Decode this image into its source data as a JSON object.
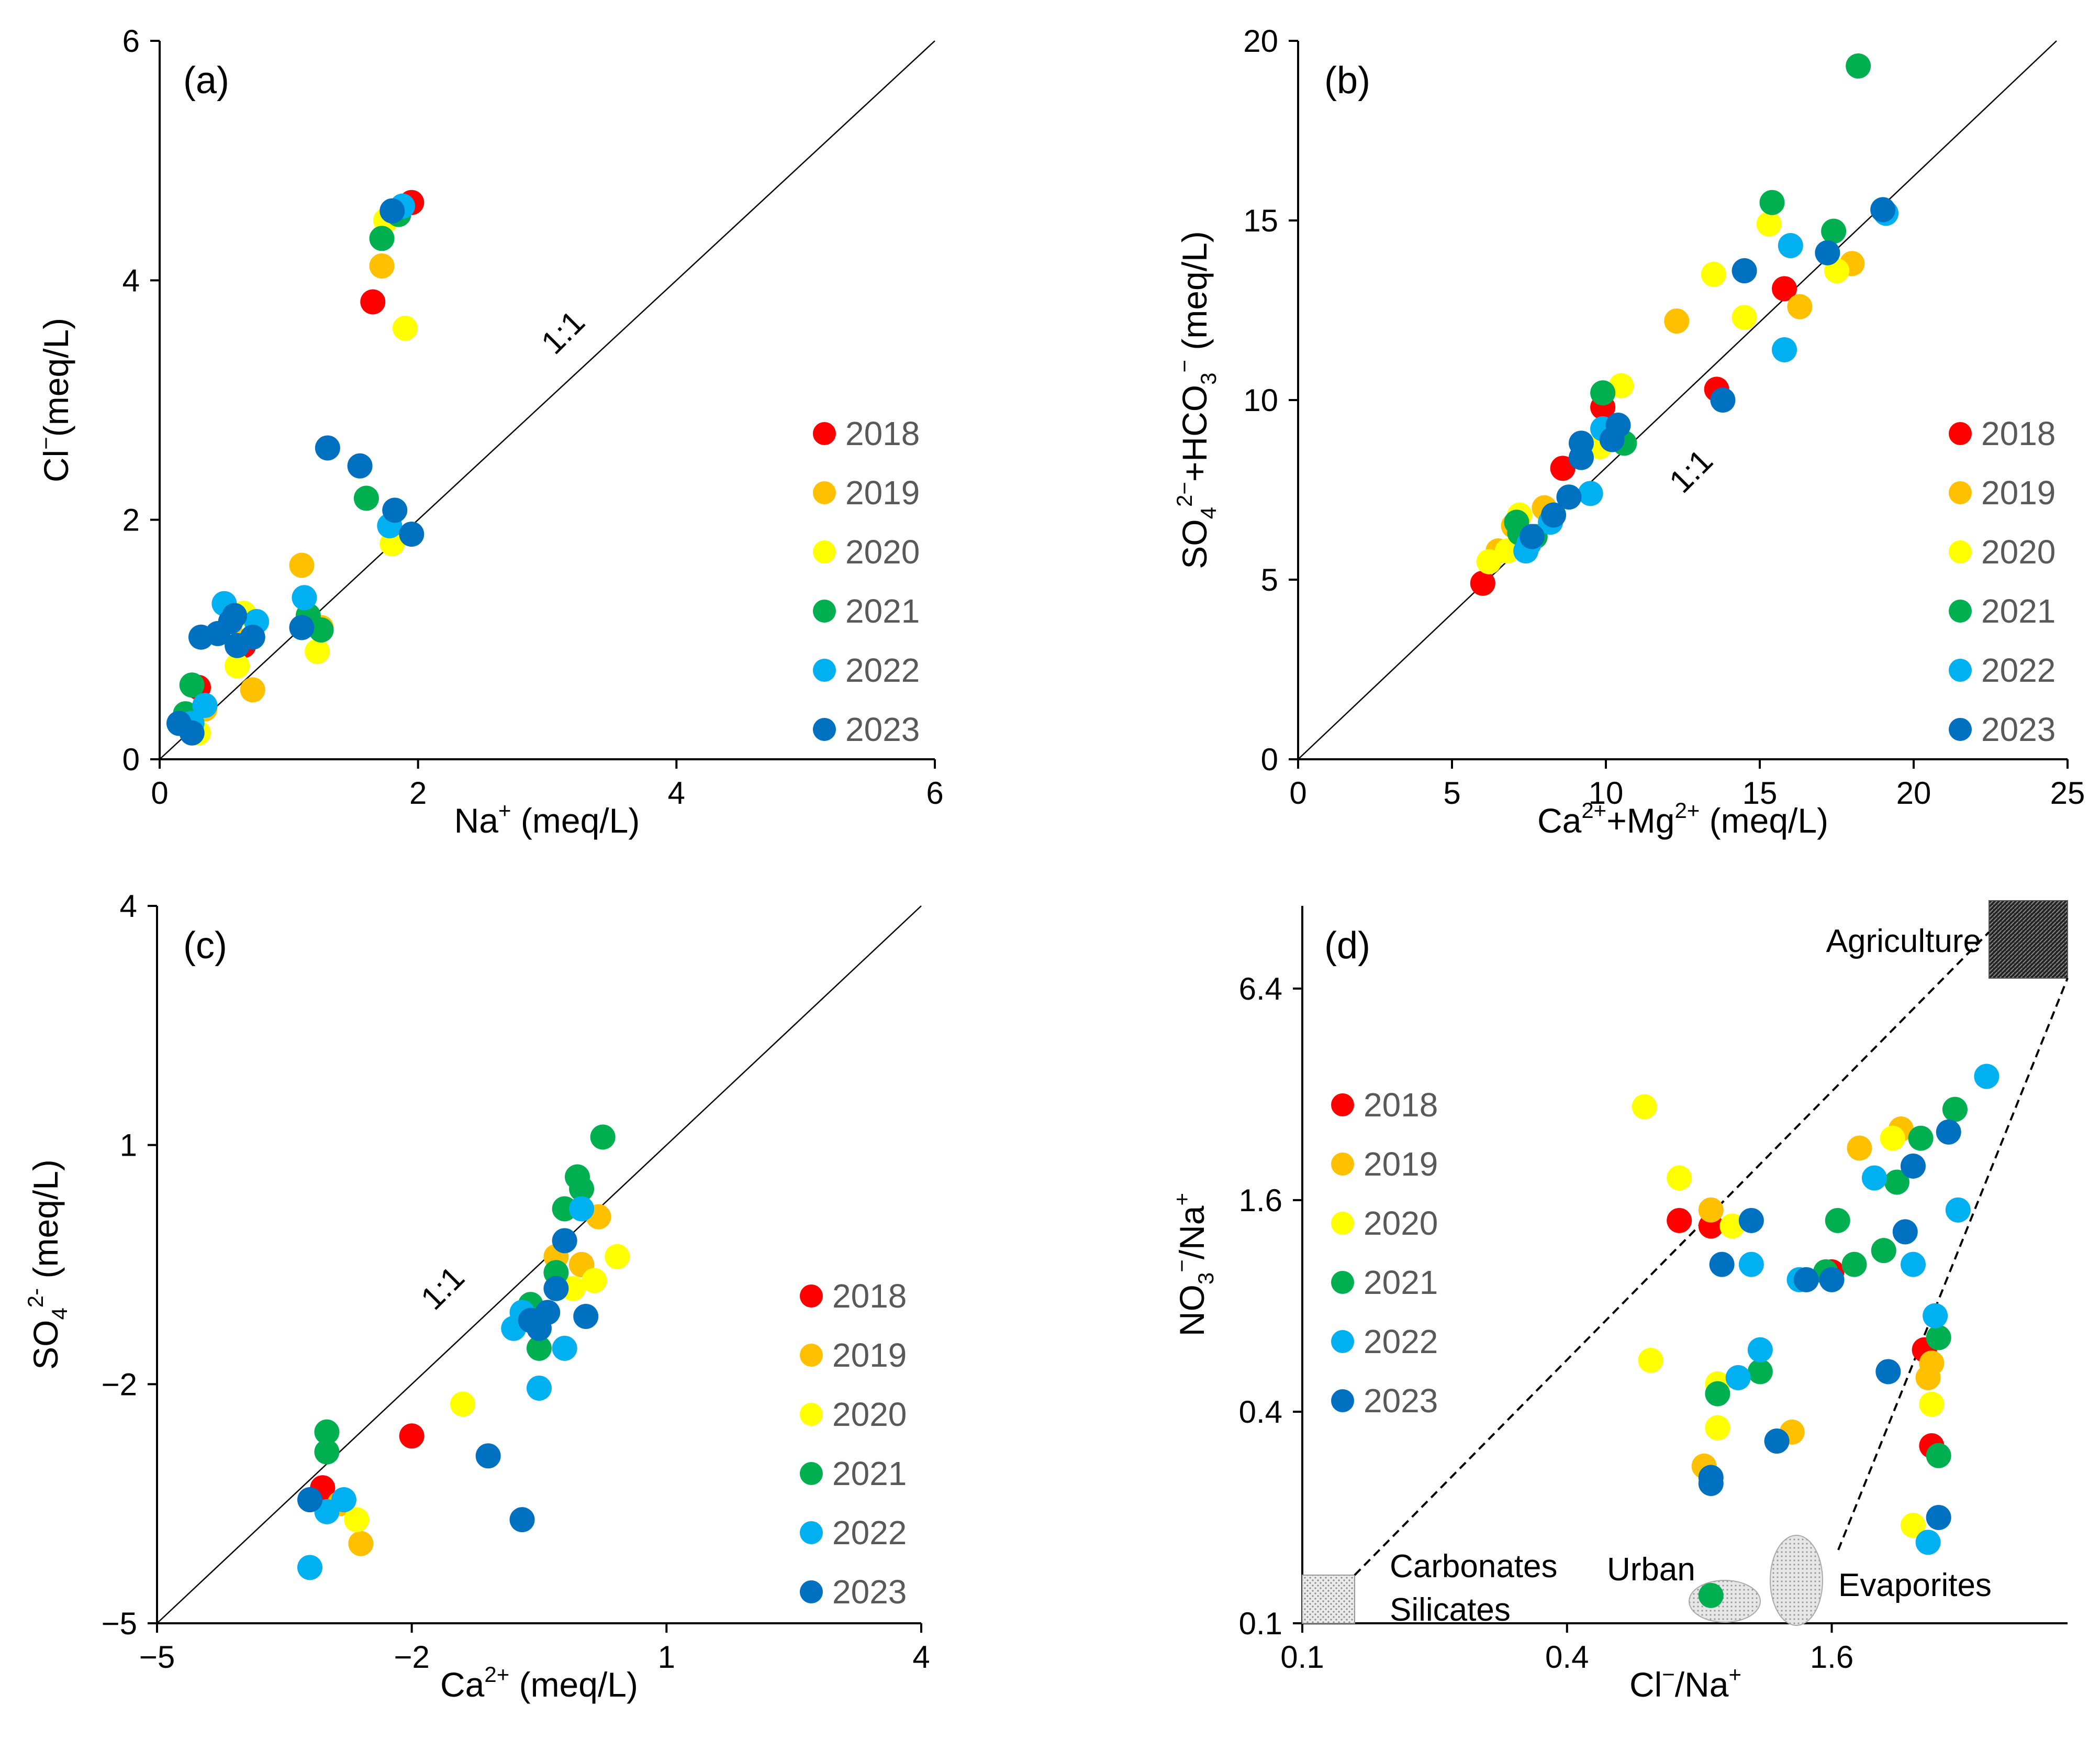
{
  "figure": {
    "colors": {
      "2018": "#ff0000",
      "2019": "#ffc000",
      "2020": "#ffff00",
      "2021": "#00b050",
      "2022": "#00b0f0",
      "2023": "#0070c0"
    },
    "ratio_label": "1:1"
  },
  "chart_data": [
    {
      "id": "a",
      "type": "scatter",
      "panel_label": "(a)",
      "xlabel": "Na⁺ (meq/L)",
      "ylabel": "Cl⁻(meq/L)",
      "xlim": [
        0,
        6
      ],
      "ylim": [
        0,
        6
      ],
      "xticks": [
        "0",
        "2",
        "4",
        "6"
      ],
      "yticks": [
        "0",
        "2",
        "4",
        "6"
      ],
      "reference_line": "1:1",
      "series": [
        {
          "name": "2018",
          "color": "#ff0000",
          "points": [
            [
              1.95,
              4.65
            ],
            [
              1.65,
              3.82
            ],
            [
              0.65,
              0.95
            ],
            [
              0.3,
              0.6
            ]
          ]
        },
        {
          "name": "2019",
          "color": "#ffc000",
          "points": [
            [
              1.72,
              4.12
            ],
            [
              1.1,
              1.62
            ],
            [
              0.72,
              0.58
            ],
            [
              0.55,
              1.05
            ],
            [
              0.35,
              0.42
            ],
            [
              1.25,
              1.1
            ]
          ]
        },
        {
          "name": "2020",
          "color": "#ffff00",
          "points": [
            [
              1.9,
              3.6
            ],
            [
              1.8,
              1.8
            ],
            [
              1.22,
              0.9
            ],
            [
              0.6,
              0.78
            ],
            [
              0.65,
              1.22
            ],
            [
              0.3,
              0.22
            ],
            [
              1.75,
              4.5
            ]
          ]
        },
        {
          "name": "2021",
          "color": "#00b050",
          "points": [
            [
              1.72,
              4.35
            ],
            [
              1.6,
              2.18
            ],
            [
              1.25,
              1.08
            ],
            [
              0.25,
              0.62
            ],
            [
              0.2,
              0.38
            ],
            [
              1.15,
              1.2
            ],
            [
              1.85,
              4.55
            ]
          ]
        },
        {
          "name": "2022",
          "color": "#00b0f0",
          "points": [
            [
              1.88,
              4.62
            ],
            [
              1.78,
              1.95
            ],
            [
              1.12,
              1.35
            ],
            [
              0.5,
              1.3
            ],
            [
              0.75,
              1.15
            ],
            [
              0.35,
              0.45
            ],
            [
              0.25,
              0.3
            ]
          ]
        },
        {
          "name": "2023",
          "color": "#0070c0",
          "points": [
            [
              1.8,
              4.58
            ],
            [
              1.3,
              2.6
            ],
            [
              1.55,
              2.45
            ],
            [
              1.82,
              2.08
            ],
            [
              1.95,
              1.88
            ],
            [
              1.1,
              1.1
            ],
            [
              0.45,
              1.05
            ],
            [
              0.55,
              1.15
            ],
            [
              0.6,
              0.95
            ],
            [
              0.72,
              1.02
            ],
            [
              0.32,
              1.02
            ],
            [
              0.15,
              0.3
            ],
            [
              0.25,
              0.22
            ],
            [
              0.58,
              1.2
            ]
          ]
        }
      ]
    },
    {
      "id": "b",
      "type": "scatter",
      "panel_label": "(b)",
      "xlabel": "Ca²⁺+Mg²⁺ (meq/L)",
      "ylabel": "SO₄²⁻+HCO₃⁻ (meq/L)",
      "xlim": [
        0,
        25
      ],
      "ylim": [
        0,
        20
      ],
      "xticks": [
        "0",
        "5",
        "10",
        "15",
        "20",
        "25"
      ],
      "yticks": [
        "0",
        "5",
        "10",
        "15",
        "20"
      ],
      "reference_line": "1:1",
      "series": [
        {
          "name": "2018",
          "color": "#ff0000",
          "points": [
            [
              6.0,
              4.9
            ],
            [
              8.6,
              8.1
            ],
            [
              9.9,
              9.8
            ],
            [
              13.6,
              10.3
            ],
            [
              15.8,
              13.1
            ]
          ]
        },
        {
          "name": "2019",
          "color": "#ffc000",
          "points": [
            [
              12.3,
              12.2
            ],
            [
              16.3,
              12.6
            ],
            [
              18.0,
              13.8
            ],
            [
              7.0,
              6.5
            ],
            [
              8.0,
              7.0
            ],
            [
              6.5,
              5.8
            ]
          ]
        },
        {
          "name": "2020",
          "color": "#ffff00",
          "points": [
            [
              15.3,
              14.9
            ],
            [
              14.5,
              12.3
            ],
            [
              13.5,
              13.5
            ],
            [
              17.5,
              13.6
            ],
            [
              10.5,
              10.4
            ],
            [
              6.2,
              5.5
            ],
            [
              6.8,
              5.8
            ],
            [
              9.8,
              8.7
            ],
            [
              7.2,
              6.8
            ]
          ]
        },
        {
          "name": "2021",
          "color": "#00b050",
          "points": [
            [
              18.2,
              19.3
            ],
            [
              15.4,
              15.5
            ],
            [
              17.4,
              14.7
            ],
            [
              9.9,
              10.2
            ],
            [
              10.6,
              8.8
            ],
            [
              7.1,
              6.6
            ],
            [
              7.7,
              6.2
            ],
            [
              7.2,
              6.3
            ]
          ]
        },
        {
          "name": "2022",
          "color": "#00b0f0",
          "points": [
            [
              16.0,
              14.3
            ],
            [
              15.8,
              11.4
            ],
            [
              19.1,
              15.2
            ],
            [
              9.5,
              7.4
            ],
            [
              9.9,
              9.2
            ],
            [
              8.2,
              6.6
            ],
            [
              7.5,
              6.0
            ],
            [
              7.4,
              5.8
            ]
          ]
        },
        {
          "name": "2023",
          "color": "#0070c0",
          "points": [
            [
              19.0,
              15.3
            ],
            [
              17.2,
              14.1
            ],
            [
              14.5,
              13.6
            ],
            [
              13.8,
              10.0
            ],
            [
              10.4,
              9.3
            ],
            [
              10.2,
              8.9
            ],
            [
              9.2,
              8.8
            ],
            [
              9.2,
              8.4
            ],
            [
              8.8,
              7.3
            ],
            [
              7.6,
              6.2
            ],
            [
              8.3,
              6.8
            ]
          ]
        }
      ]
    },
    {
      "id": "c",
      "type": "scatter",
      "panel_label": "(c)",
      "xlabel": "Ca²⁺ (meq/L)",
      "ylabel": "SO₄²⁻ (meq/L)",
      "xlim": [
        -5,
        4
      ],
      "ylim": [
        -5,
        4
      ],
      "xticks": [
        "−5",
        "−2",
        "1",
        "4"
      ],
      "yticks": [
        "−5",
        "−2",
        "1",
        "4"
      ],
      "reference_line": "1:1",
      "series": [
        {
          "name": "2018",
          "color": "#ff0000",
          "points": [
            [
              -2.0,
              -2.65
            ],
            [
              -3.05,
              -3.3
            ],
            [
              0.0,
              -0.5
            ]
          ]
        },
        {
          "name": "2019",
          "color": "#ffc000",
          "points": [
            [
              -2.85,
              -3.5
            ],
            [
              -2.6,
              -4.0
            ],
            [
              0.2,
              0.1
            ],
            [
              -0.3,
              -0.4
            ],
            [
              0.0,
              -0.5
            ]
          ]
        },
        {
          "name": "2020",
          "color": "#ffff00",
          "points": [
            [
              -1.4,
              -2.25
            ],
            [
              -2.65,
              -3.7
            ],
            [
              0.42,
              -0.4
            ],
            [
              -0.1,
              -0.8
            ],
            [
              0.15,
              -0.7
            ]
          ]
        },
        {
          "name": "2021",
          "color": "#00b050",
          "points": [
            [
              -3.0,
              -2.6
            ],
            [
              -3.0,
              -2.85
            ],
            [
              0.25,
              1.1
            ],
            [
              -0.05,
              0.6
            ],
            [
              -0.2,
              0.2
            ],
            [
              0.0,
              0.45
            ],
            [
              -0.6,
              -1.0
            ],
            [
              -0.5,
              -1.55
            ],
            [
              -0.3,
              -0.6
            ]
          ]
        },
        {
          "name": "2022",
          "color": "#00b0f0",
          "points": [
            [
              -3.2,
              -4.3
            ],
            [
              -3.0,
              -3.6
            ],
            [
              -2.8,
              -3.45
            ],
            [
              -0.5,
              -2.05
            ],
            [
              -0.2,
              -1.55
            ],
            [
              -0.8,
              -1.3
            ],
            [
              -0.7,
              -1.1
            ],
            [
              0.0,
              0.2
            ]
          ]
        },
        {
          "name": "2023",
          "color": "#0070c0",
          "points": [
            [
              -3.2,
              -3.45
            ],
            [
              -1.1,
              -2.9
            ],
            [
              -0.7,
              -3.7
            ],
            [
              -0.3,
              -0.8
            ],
            [
              0.05,
              -1.15
            ],
            [
              -0.5,
              -1.3
            ],
            [
              -0.4,
              -1.1
            ],
            [
              -0.2,
              -0.2
            ],
            [
              -0.6,
              -1.2
            ]
          ]
        }
      ]
    },
    {
      "id": "d",
      "type": "scatter",
      "panel_label": "(d)",
      "xlabel": "Cl⁻/Na⁺",
      "ylabel": "NO₃⁻/Na⁺",
      "xscale": "log",
      "yscale": "log",
      "xlim": [
        0.1,
        5.5
      ],
      "ylim": [
        0.1,
        11
      ],
      "xticks": [
        "0.1",
        "0.4",
        "1.6"
      ],
      "yticks": [
        "0.1",
        "0.4",
        "1.6",
        "6.4"
      ],
      "annotations": [
        "Agriculture",
        "Carbonates",
        "Silicates",
        "Urban",
        "Evaporites"
      ],
      "series": [
        {
          "name": "2018",
          "color": "#ff0000",
          "points": [
            [
              0.72,
              1.4
            ],
            [
              0.85,
              1.35
            ],
            [
              1.6,
              1.0
            ],
            [
              2.6,
              0.6
            ],
            [
              2.7,
              0.32
            ]
          ]
        },
        {
          "name": "2019",
          "color": "#ffc000",
          "points": [
            [
              2.3,
              2.55
            ],
            [
              1.85,
              2.25
            ],
            [
              0.85,
              1.5
            ],
            [
              0.82,
              0.28
            ],
            [
              1.3,
              0.35
            ],
            [
              2.65,
              0.5
            ],
            [
              2.7,
              0.55
            ]
          ]
        },
        {
          "name": "2020",
          "color": "#ffff00",
          "points": [
            [
              0.6,
              2.95
            ],
            [
              0.72,
              1.85
            ],
            [
              0.95,
              1.35
            ],
            [
              0.62,
              0.56
            ],
            [
              0.88,
              0.48
            ],
            [
              0.88,
              0.36
            ],
            [
              2.2,
              2.4
            ],
            [
              2.7,
              0.42
            ],
            [
              2.45,
              0.19
            ]
          ]
        },
        {
          "name": "2021",
          "color": "#00b050",
          "points": [
            [
              3.05,
              2.9
            ],
            [
              2.55,
              2.4
            ],
            [
              2.25,
              1.8
            ],
            [
              1.65,
              1.4
            ],
            [
              2.1,
              1.15
            ],
            [
              1.8,
              1.05
            ],
            [
              1.55,
              1.0
            ],
            [
              1.1,
              0.52
            ],
            [
              0.88,
              0.45
            ],
            [
              2.8,
              0.3
            ],
            [
              2.8,
              0.65
            ],
            [
              0.85,
              0.12
            ]
          ]
        },
        {
          "name": "2022",
          "color": "#00b0f0",
          "points": [
            [
              3.6,
              3.6
            ],
            [
              2.0,
              1.85
            ],
            [
              1.05,
              1.05
            ],
            [
              1.35,
              0.95
            ],
            [
              0.98,
              0.5
            ],
            [
              1.1,
              0.6
            ],
            [
              2.45,
              1.05
            ],
            [
              3.1,
              1.5
            ],
            [
              2.75,
              0.75
            ],
            [
              2.65,
              0.17
            ]
          ]
        },
        {
          "name": "2023",
          "color": "#0070c0",
          "points": [
            [
              2.95,
              2.5
            ],
            [
              2.45,
              2.0
            ],
            [
              2.35,
              1.3
            ],
            [
              1.4,
              0.95
            ],
            [
              1.6,
              0.95
            ],
            [
              1.05,
              1.4
            ],
            [
              0.9,
              1.05
            ],
            [
              1.2,
              0.33
            ],
            [
              0.85,
              0.26
            ],
            [
              0.85,
              0.25
            ],
            [
              2.15,
              0.52
            ],
            [
              2.8,
              0.2
            ]
          ]
        }
      ]
    }
  ]
}
